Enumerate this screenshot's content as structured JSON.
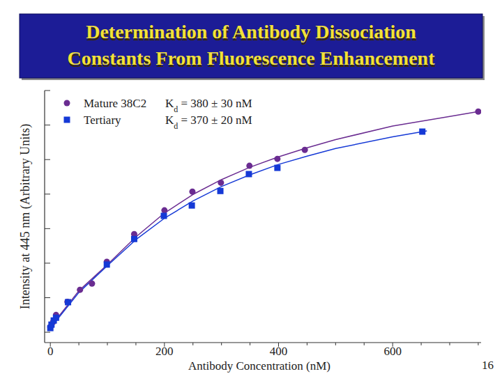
{
  "page_number": "16",
  "chart_data": {
    "type": "scatter",
    "title": [
      "Determination of Antibody Dissociation",
      "Constants From Fluorescence Enhancement"
    ],
    "x_label": "Antibody Concentration (nM)",
    "y_label": "Intensity at 445 nm (Arbitrary Units)",
    "xlim": [
      -10,
      755
    ],
    "xticks": [
      0,
      200,
      400,
      600
    ],
    "xminorticks": [
      50,
      100,
      150,
      250,
      300,
      350,
      450,
      500,
      550,
      650,
      700,
      750
    ],
    "ylim": [
      -0.3,
      7
    ],
    "yticks": [
      0,
      1,
      2,
      3,
      4,
      5,
      6,
      7
    ],
    "tick_labels": "x",
    "legend": "top-left",
    "series": [
      {
        "name": "Mature 38C2",
        "color": "#6a2c91",
        "marker": "circle",
        "kd_label": [
          "K",
          "d",
          " = 380 ± 30 nM"
        ],
        "x": [
          0,
          5,
          10,
          30,
          52,
          73,
          99,
          147,
          200,
          249,
          299,
          349,
          398,
          446,
          750
        ],
        "values": [
          0.15,
          0.3,
          0.5,
          0.88,
          1.23,
          1.41,
          2.04,
          2.84,
          3.53,
          4.07,
          4.33,
          4.82,
          5.02,
          5.28,
          6.39
        ],
        "fit": {
          "x": [
            0,
            50,
            100,
            150,
            200,
            250,
            300,
            350,
            400,
            450,
            500,
            600,
            700,
            750
          ],
          "values": [
            0.15,
            1.2,
            1.96,
            2.76,
            3.45,
            3.99,
            4.42,
            4.78,
            5.08,
            5.34,
            5.58,
            5.97,
            6.25,
            6.39
          ]
        }
      },
      {
        "name": "Tertiary",
        "color": "#1539d6",
        "marker": "square",
        "kd_label": [
          "K",
          "d",
          " = 370 ± 20 nM"
        ],
        "x": [
          0,
          2,
          6,
          10,
          31,
          99,
          147,
          199,
          248,
          298,
          348,
          398,
          652
        ],
        "values": [
          0.12,
          0.22,
          0.34,
          0.42,
          0.87,
          1.96,
          2.7,
          3.37,
          3.67,
          4.09,
          4.58,
          4.76,
          5.81
        ],
        "fit": {
          "x": [
            0,
            50,
            100,
            150,
            200,
            250,
            300,
            350,
            400,
            450,
            500,
            600,
            660
          ],
          "values": [
            0.12,
            1.15,
            1.93,
            2.68,
            3.3,
            3.8,
            4.22,
            4.56,
            4.86,
            5.1,
            5.32,
            5.66,
            5.83
          ]
        }
      }
    ]
  }
}
